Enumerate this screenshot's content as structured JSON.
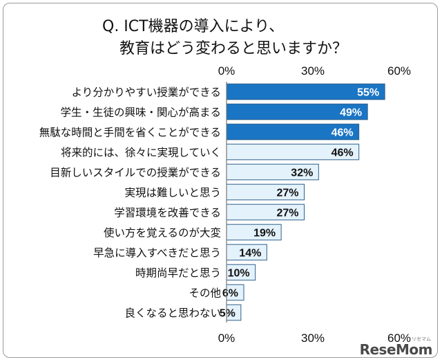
{
  "title_line1": "Q. ICT機器の導入により、",
  "title_line2": "教育はどう変わると思いますか？",
  "watermark": "ReseMom",
  "watermark_small": "リセマム",
  "colors": {
    "highlight": "#1a75c4",
    "normal": "#e4f2fc",
    "border": "#2d5f8a"
  },
  "chart_data": {
    "type": "bar",
    "orientation": "horizontal",
    "categories": [
      "より分かりやすい授業ができる",
      "学生・生徒の興味・関心が高まる",
      "無駄な時間と手間を省くことができる",
      "将来的には、徐々に実現していく",
      "目新しいスタイルでの授業ができる",
      "実現は難しいと思う",
      "学習環境を改善できる",
      "使い方を覚えるのが大変",
      "早急に導入すべきだと思う",
      "時期尚早だと思う",
      "その他",
      "良くなると思わない"
    ],
    "values": [
      55,
      49,
      46,
      46,
      32,
      27,
      27,
      19,
      14,
      10,
      6,
      5
    ],
    "value_labels": [
      "55%",
      "49%",
      "46%",
      "46%",
      "32%",
      "27%",
      "27%",
      "19%",
      "14%",
      "10%",
      "6%",
      "5%"
    ],
    "highlighted": [
      true,
      true,
      true,
      false,
      false,
      false,
      false,
      false,
      false,
      false,
      false,
      false
    ],
    "xlim": [
      0,
      60
    ],
    "xticks": [
      0,
      30,
      60
    ],
    "xtick_labels": [
      "0%",
      "30%",
      "60%"
    ],
    "xtick_positions": "top and bottom",
    "grid": false
  }
}
